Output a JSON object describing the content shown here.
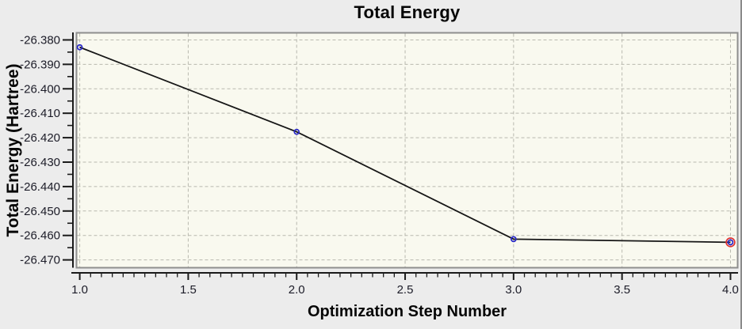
{
  "chart_data": {
    "type": "line",
    "title": "Total Energy",
    "xlabel": "Optimization Step Number",
    "ylabel": "Total Energy (Hartree)",
    "x": [
      1.0,
      2.0,
      3.0,
      4.0
    ],
    "y": [
      -26.383,
      -26.4176,
      -26.4615,
      -26.4628
    ],
    "xlim": [
      0.985,
      4.033
    ],
    "ylim": [
      -26.4732,
      -26.3771
    ],
    "x_major_ticks": {
      "values": [
        1.0,
        1.5,
        2.0,
        2.5,
        3.0,
        3.5,
        4.0
      ],
      "labels": [
        "1.0",
        "1.5",
        "2.0",
        "2.5",
        "3.0",
        "3.5",
        "4.0"
      ]
    },
    "y_major_ticks": {
      "values": [
        -26.38,
        -26.39,
        -26.4,
        -26.41,
        -26.42,
        -26.43,
        -26.44,
        -26.45,
        -26.46,
        -26.47
      ],
      "labels": [
        "-26.380",
        "-26.390",
        "-26.400",
        "-26.410",
        "-26.420",
        "-26.430",
        "-26.440",
        "-26.450",
        "-26.460",
        "-26.470"
      ]
    },
    "x_minor_step": 0.05,
    "y_minor_step": 0.005,
    "grid": "dashed-at-major-ticks",
    "legend": "none",
    "highlighted_point_index": 3,
    "colors": {
      "outer_background": "#ececec",
      "plot_background": "#f9f9ef",
      "plot_frame": "#8e8e8e",
      "grid_line": "#b9b9af",
      "axis_line": "#1a1a1a",
      "tick_label": "#1c1c28",
      "data_line": "#161616",
      "marker": "#2828c8",
      "highlight_ring": "#e03232"
    }
  }
}
